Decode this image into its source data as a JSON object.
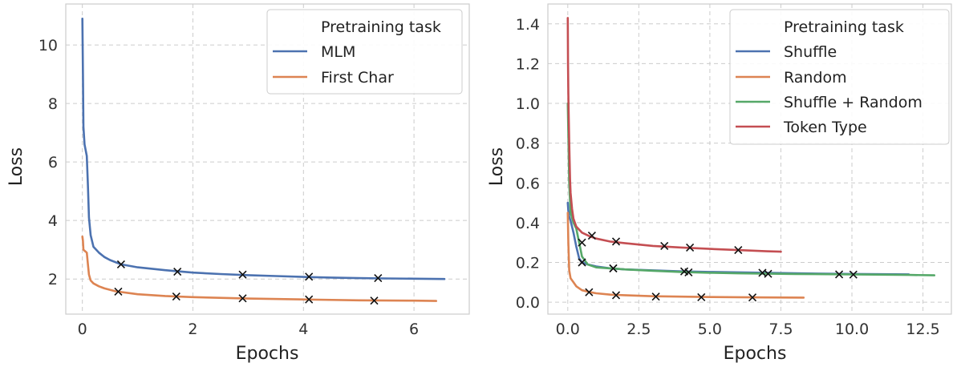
{
  "chart_data": [
    {
      "type": "line",
      "xlabel": "Epochs",
      "ylabel": "Loss",
      "xlim": [
        -0.3,
        7.0
      ],
      "ylim": [
        0.8,
        11.4
      ],
      "xticks": [
        0,
        2,
        4,
        6
      ],
      "yticks": [
        2,
        4,
        6,
        8,
        10
      ],
      "xtick_labels": [
        "0",
        "2",
        "4",
        "6"
      ],
      "ytick_labels": [
        "2",
        "4",
        "6",
        "8",
        "10"
      ],
      "grid": true,
      "legend": {
        "title": "Pretraining task",
        "placement": "top-right"
      },
      "series": [
        {
          "name": "MLM",
          "color": "#4c72b0",
          "x": [
            0.0,
            0.01,
            0.02,
            0.04,
            0.06,
            0.08,
            0.1,
            0.12,
            0.15,
            0.2,
            0.3,
            0.4,
            0.5,
            0.7,
            1.0,
            1.5,
            2.0,
            2.5,
            3.0,
            3.5,
            4.0,
            4.5,
            5.0,
            5.5,
            6.0,
            6.55
          ],
          "y": [
            10.9,
            9.0,
            7.2,
            6.6,
            6.4,
            6.2,
            5.2,
            4.1,
            3.5,
            3.1,
            2.9,
            2.75,
            2.65,
            2.5,
            2.4,
            2.3,
            2.22,
            2.17,
            2.13,
            2.1,
            2.07,
            2.05,
            2.03,
            2.02,
            2.01,
            2.0
          ],
          "markers": {
            "x": [
              0.7,
              1.72,
              2.9,
              4.1,
              5.35
            ],
            "y": [
              2.5,
              2.25,
              2.15,
              2.08,
              2.03
            ]
          }
        },
        {
          "name": "First Char",
          "color": "#dd8452",
          "x": [
            0.0,
            0.01,
            0.02,
            0.05,
            0.08,
            0.1,
            0.12,
            0.15,
            0.2,
            0.3,
            0.4,
            0.6,
            1.0,
            1.5,
            2.0,
            3.0,
            4.0,
            5.0,
            6.0,
            6.4
          ],
          "y": [
            3.45,
            3.3,
            3.0,
            2.95,
            2.9,
            2.5,
            2.15,
            1.95,
            1.85,
            1.75,
            1.68,
            1.58,
            1.48,
            1.42,
            1.38,
            1.33,
            1.3,
            1.27,
            1.26,
            1.25
          ],
          "markers": {
            "x": [
              0.65,
              1.7,
              2.9,
              4.1,
              5.28
            ],
            "y": [
              1.57,
              1.4,
              1.34,
              1.3,
              1.26
            ]
          }
        }
      ]
    },
    {
      "type": "line",
      "xlabel": "Epochs",
      "ylabel": "Loss",
      "xlim": [
        -0.7,
        13.5
      ],
      "ylim": [
        -0.06,
        1.5
      ],
      "xticks": [
        0,
        2.5,
        5,
        7.5,
        10,
        12.5
      ],
      "yticks": [
        0,
        0.2,
        0.4,
        0.6,
        0.8,
        1.0,
        1.2,
        1.4
      ],
      "xtick_labels": [
        "0.0",
        "2.5",
        "5.0",
        "7.5",
        "10.0",
        "12.5"
      ],
      "ytick_labels": [
        "0.0",
        "0.2",
        "0.4",
        "0.6",
        "0.8",
        "1.0",
        "1.2",
        "1.4"
      ],
      "grid": true,
      "legend": {
        "title": "Pretraining task",
        "placement": "top-right"
      },
      "series": [
        {
          "name": "Shuffle",
          "color": "#4c72b0",
          "x": [
            0.0,
            0.02,
            0.05,
            0.1,
            0.2,
            0.3,
            0.4,
            0.5,
            0.7,
            1.0,
            1.5,
            2.0,
            3.0,
            4.0,
            5.0,
            6.0,
            8.0,
            10.0,
            12.0
          ],
          "y": [
            0.5,
            0.46,
            0.43,
            0.41,
            0.35,
            0.28,
            0.22,
            0.2,
            0.19,
            0.18,
            0.17,
            0.165,
            0.16,
            0.155,
            0.152,
            0.15,
            0.145,
            0.142,
            0.14
          ],
          "markers": {
            "x": [
              0.5,
              1.6,
              4.1,
              6.85
            ],
            "y": [
              0.2,
              0.17,
              0.155,
              0.148
            ]
          }
        },
        {
          "name": "Random",
          "color": "#dd8452",
          "x": [
            0.0,
            0.02,
            0.05,
            0.1,
            0.2,
            0.3,
            0.5,
            0.8,
            1.0,
            1.5,
            2.0,
            3.0,
            4.0,
            5.0,
            6.0,
            7.0,
            8.3
          ],
          "y": [
            0.45,
            0.3,
            0.16,
            0.12,
            0.1,
            0.08,
            0.06,
            0.05,
            0.045,
            0.038,
            0.035,
            0.03,
            0.028,
            0.026,
            0.025,
            0.024,
            0.023
          ],
          "markers": {
            "x": [
              0.75,
              1.7,
              3.1,
              4.7,
              6.5
            ],
            "y": [
              0.05,
              0.035,
              0.028,
              0.025,
              0.024
            ]
          }
        },
        {
          "name": "Shuffle + Random",
          "color": "#55a868",
          "x": [
            0.0,
            0.02,
            0.05,
            0.1,
            0.2,
            0.3,
            0.4,
            0.5,
            0.7,
            1.0,
            1.5,
            2.0,
            3.0,
            4.0,
            5.0,
            6.0,
            8.0,
            10.0,
            12.0,
            12.9
          ],
          "y": [
            1.0,
            0.85,
            0.6,
            0.45,
            0.4,
            0.37,
            0.3,
            0.23,
            0.19,
            0.175,
            0.17,
            0.165,
            0.158,
            0.152,
            0.148,
            0.145,
            0.142,
            0.14,
            0.137,
            0.135
          ],
          "markers": {
            "x": [
              1.6,
              4.25,
              7.05,
              9.55,
              10.05
            ],
            "y": [
              0.17,
              0.15,
              0.143,
              0.14,
              0.139
            ]
          }
        },
        {
          "name": "Token Type",
          "color": "#c44e52",
          "x": [
            0.0,
            0.01,
            0.02,
            0.03,
            0.05,
            0.08,
            0.1,
            0.15,
            0.2,
            0.3,
            0.5,
            0.8,
            1.0,
            1.5,
            2.0,
            3.0,
            4.0,
            5.0,
            6.0,
            7.0,
            7.5
          ],
          "y": [
            1.43,
            1.2,
            1.05,
            0.95,
            0.8,
            0.62,
            0.55,
            0.47,
            0.42,
            0.38,
            0.35,
            0.33,
            0.32,
            0.305,
            0.297,
            0.283,
            0.275,
            0.268,
            0.262,
            0.256,
            0.254
          ],
          "markers": {
            "x": [
              0.5,
              0.85,
              1.7,
              3.4,
              4.3,
              6.0
            ],
            "y": [
              0.3,
              0.335,
              0.305,
              0.283,
              0.275,
              0.262
            ]
          }
        }
      ]
    }
  ]
}
